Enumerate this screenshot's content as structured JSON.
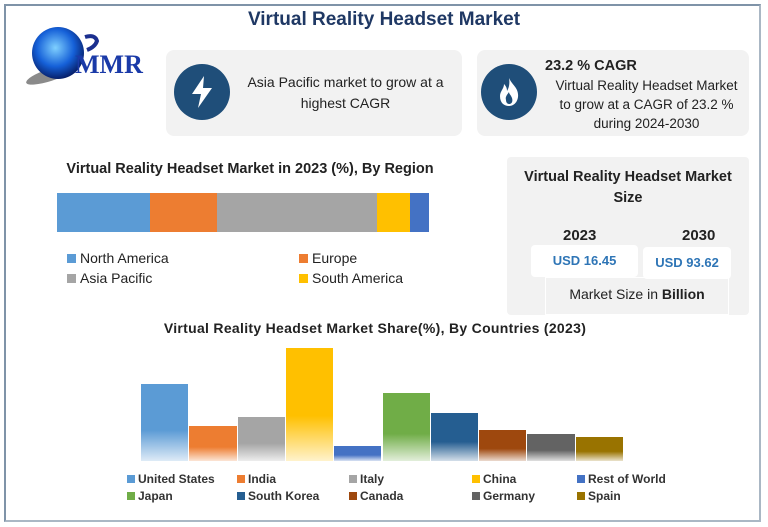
{
  "title": "Virtual Reality Headset Market",
  "logo": {
    "text": "MMR",
    "icon": "globe-icon"
  },
  "highlights": [
    {
      "icon": "lightning-icon",
      "text": "Asia Pacific market to grow at a highest CAGR"
    },
    {
      "icon": "flame-icon",
      "heading": "23.2 % CAGR",
      "text": "Virtual Reality Headset Market to grow at a CAGR of 23.2 % during 2024-2030"
    }
  ],
  "market_size": {
    "title": "Virtual Reality Headset Market Size",
    "years": [
      {
        "year": "2023",
        "value": "USD 16.45"
      },
      {
        "year": "2030",
        "value": "USD 93.62"
      }
    ],
    "note_prefix": "Market Size in ",
    "note_bold": "Billion"
  },
  "chart_data": [
    {
      "type": "bar",
      "orientation": "horizontal-stacked",
      "title": "Virtual Reality Headset Market in 2023 (%), By Region",
      "series": [
        {
          "name": "North America",
          "value": 25,
          "color": "#5b9bd5"
        },
        {
          "name": "Europe",
          "value": 18,
          "color": "#ed7d31"
        },
        {
          "name": "Asia Pacific",
          "value": 43,
          "color": "#a5a5a5"
        },
        {
          "name": "South America",
          "value": 9,
          "color": "#ffc000"
        },
        {
          "name": "",
          "value": 5,
          "color": "#4472c4"
        }
      ],
      "legend": "bottom"
    },
    {
      "type": "bar",
      "title": "Virtual Reality Headset Market Share(%), By Countries (2023)",
      "categories": [
        "United States",
        "India",
        "Italy",
        "China",
        "Rest of World",
        "Japan",
        "South Korea",
        "Canada",
        "Germany",
        "Spain"
      ],
      "values": [
        16.0,
        7.3,
        9.1,
        23.4,
        3.1,
        14.1,
        10.0,
        6.4,
        5.6,
        5.0
      ],
      "colors": [
        "#5b9bd5",
        "#ed7d31",
        "#a5a5a5",
        "#ffc000",
        "#4472c4",
        "#70ad47",
        "#255e91",
        "#9e480e",
        "#636363",
        "#997300"
      ],
      "legend_order": [
        "United States",
        "India",
        "Italy",
        "China",
        "Rest of World",
        "Japan",
        "South Korea",
        "Canada",
        "Germany",
        "Spain"
      ],
      "legend": "bottom",
      "axes": "hidden"
    }
  ]
}
